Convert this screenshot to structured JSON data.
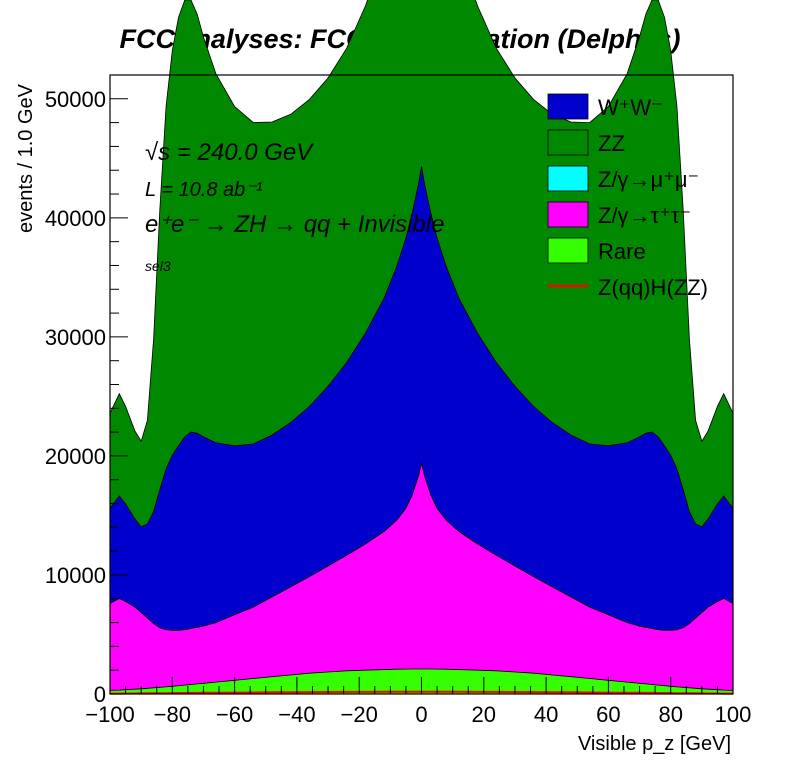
{
  "chart_data": {
    "type": "area",
    "subtype": "stacked histogram",
    "title": "FCCAnalyses: FCC-ee Simulation (Delphes)",
    "xlabel": "Visible p_z [GeV]",
    "ylabel": "events / 1.0 GeV",
    "xlim": [
      -100,
      100
    ],
    "ylim": [
      0,
      52000
    ],
    "x_ticks": [
      -100,
      -80,
      -60,
      -40,
      -20,
      0,
      20,
      40,
      60,
      80,
      100
    ],
    "x_tick_labels": [
      "−100",
      "−80",
      "−60",
      "−40",
      "−20",
      "0",
      "20",
      "40",
      "60",
      "80",
      "100"
    ],
    "y_ticks": [
      0,
      10000,
      20000,
      30000,
      40000,
      50000
    ],
    "y_tick_labels": [
      "0",
      "10000",
      "20000",
      "30000",
      "40000",
      "50000"
    ],
    "grid": false,
    "legend_position": "top-right",
    "annotations": {
      "sqrts": "√s = 240.0 GeV",
      "lumi": "L = 10.8 ab⁻¹",
      "process": "e⁺e⁻ → ZH → qq + Invisible",
      "selection": "sel3"
    },
    "x": [
      -100,
      -97,
      -95,
      -92,
      -90,
      -88,
      -86,
      -84,
      -82,
      -80,
      -78,
      -76,
      -74,
      -72,
      -70,
      -66,
      -60,
      -54,
      -48,
      -42,
      -36,
      -30,
      -24,
      -18,
      -12,
      -8,
      -5,
      -3,
      -1,
      0,
      1,
      3,
      5,
      8,
      12,
      18,
      24,
      30,
      36,
      42,
      48,
      54,
      60,
      66,
      70,
      72,
      74,
      76,
      78,
      80,
      82,
      84,
      86,
      88,
      90,
      92,
      95,
      97,
      100
    ],
    "series": [
      {
        "name": "Rare",
        "color": "#33ff00",
        "values": [
          300,
          330,
          360,
          400,
          440,
          480,
          520,
          560,
          600,
          650,
          700,
          750,
          800,
          850,
          900,
          1000,
          1150,
          1300,
          1450,
          1600,
          1750,
          1850,
          1950,
          2000,
          2050,
          2080,
          2090,
          2100,
          2100,
          2100,
          2100,
          2100,
          2090,
          2080,
          2050,
          2000,
          1950,
          1850,
          1750,
          1600,
          1450,
          1300,
          1150,
          1000,
          900,
          850,
          800,
          750,
          700,
          650,
          600,
          560,
          520,
          480,
          440,
          400,
          360,
          330,
          300
        ]
      },
      {
        "name": "Z/γ→τ⁺τ⁻",
        "color": "#ff00ff",
        "values": [
          7300,
          7700,
          7400,
          6900,
          6400,
          5900,
          5400,
          5000,
          4800,
          4700,
          4650,
          4650,
          4700,
          4750,
          4800,
          5000,
          5500,
          6000,
          6700,
          7400,
          8100,
          8900,
          9700,
          10600,
          11600,
          12500,
          13500,
          14600,
          16200,
          17300,
          16200,
          14600,
          13500,
          12500,
          11600,
          10600,
          9700,
          8900,
          8100,
          7400,
          6700,
          6000,
          5500,
          5000,
          4800,
          4750,
          4700,
          4650,
          4650,
          4700,
          4800,
          5000,
          5400,
          5900,
          6400,
          6900,
          7400,
          7700,
          7300
        ]
      },
      {
        "name": "Z/γ→μ⁺μ⁻",
        "color": "#00ffff",
        "values": [
          0,
          0,
          0,
          0,
          0,
          0,
          0,
          0,
          0,
          0,
          0,
          0,
          0,
          0,
          0,
          0,
          0,
          0,
          0,
          0,
          0,
          0,
          0,
          0,
          0,
          0,
          0,
          0,
          0,
          0,
          0,
          0,
          0,
          0,
          0,
          0,
          0,
          0,
          0,
          0,
          0,
          0,
          0,
          0,
          0,
          0,
          0,
          0,
          0,
          0,
          0,
          0,
          0,
          0,
          0,
          0,
          0,
          0,
          0
        ]
      },
      {
        "name": "W⁺W⁻",
        "color": "#0000cc",
        "values": [
          8000,
          8600,
          8200,
          7400,
          7200,
          7900,
          9400,
          11600,
          13500,
          14700,
          15500,
          16200,
          16500,
          16300,
          15900,
          15100,
          14200,
          13700,
          13600,
          13800,
          14300,
          15100,
          16200,
          17700,
          19600,
          21300,
          22700,
          23700,
          24500,
          24900,
          24500,
          23700,
          22700,
          21300,
          19600,
          17700,
          16200,
          15100,
          14300,
          13800,
          13600,
          13700,
          14200,
          15100,
          15900,
          16300,
          16500,
          16200,
          15500,
          14700,
          13500,
          11600,
          9400,
          7900,
          7200,
          7400,
          8200,
          8600,
          8000
        ]
      },
      {
        "name": "ZZ",
        "color": "#008800",
        "values": [
          8000,
          8600,
          8200,
          7400,
          7200,
          8700,
          14500,
          23500,
          30500,
          34000,
          36000,
          36700,
          36300,
          35200,
          33600,
          31000,
          28500,
          27000,
          26300,
          25900,
          25800,
          25900,
          26400,
          27500,
          29000,
          30500,
          31800,
          33200,
          34300,
          34600,
          34300,
          33200,
          31800,
          30500,
          29000,
          27500,
          26400,
          25900,
          25800,
          25900,
          26300,
          27000,
          28500,
          31000,
          33600,
          35200,
          36300,
          36700,
          36000,
          34000,
          30500,
          23500,
          14500,
          8700,
          7200,
          7400,
          8200,
          8600,
          8000
        ]
      },
      {
        "name": "Z(qq)H(ZZ)",
        "color": "#ff0000",
        "style": "line",
        "values": [
          30,
          35,
          40,
          45,
          50,
          55,
          60,
          65,
          70,
          75,
          80,
          85,
          90,
          95,
          100,
          110,
          120,
          130,
          140,
          150,
          160,
          170,
          175,
          180,
          185,
          188,
          190,
          190,
          190,
          190,
          190,
          190,
          190,
          188,
          185,
          180,
          175,
          170,
          160,
          150,
          140,
          130,
          120,
          110,
          100,
          95,
          90,
          85,
          80,
          75,
          70,
          65,
          60,
          55,
          50,
          45,
          40,
          35,
          30
        ]
      }
    ],
    "legend": [
      {
        "label": "W⁺W⁻",
        "color": "#0000cc",
        "kind": "box"
      },
      {
        "label": "ZZ",
        "color": "#008800",
        "kind": "box"
      },
      {
        "label": "Z/γ→μ⁺μ⁻",
        "color": "#00ffff",
        "kind": "box"
      },
      {
        "label": "Z/γ→τ⁺τ⁻",
        "color": "#ff00ff",
        "kind": "box"
      },
      {
        "label": "Rare",
        "color": "#33ff00",
        "kind": "box"
      },
      {
        "label": "Z(qq)H(ZZ)",
        "color": "#ff0000",
        "kind": "line"
      }
    ]
  }
}
